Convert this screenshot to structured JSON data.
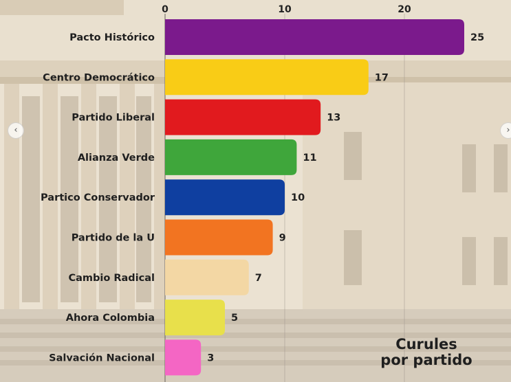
{
  "chart_data": {
    "type": "bar",
    "orientation": "horizontal",
    "categories": [
      "Pacto Histórico",
      "Centro Democrático",
      "Partido Liberal",
      "Alianza Verde",
      "Partico Conservador",
      "Partido de la U",
      "Cambio Radical",
      "Ahora Colombia",
      "Salvación Nacional"
    ],
    "values": [
      25,
      17,
      13,
      11,
      10,
      9,
      7,
      5,
      3
    ],
    "colors": [
      "#7b1a8c",
      "#f9cc16",
      "#e11a1e",
      "#3fa63b",
      "#0f3fa0",
      "#f27421",
      "#f3d7a4",
      "#e8e04b",
      "#f466c4"
    ],
    "xticks": [
      0,
      10,
      20
    ],
    "xlim": [
      0,
      25
    ],
    "axis_position": "top",
    "grid": true,
    "caption": [
      "Curules",
      "por partido"
    ]
  },
  "navigation": {
    "prev_icon": "chevron-left-icon",
    "next_icon": "chevron-right-icon",
    "prev_glyph": "‹",
    "next_glyph": "›"
  }
}
